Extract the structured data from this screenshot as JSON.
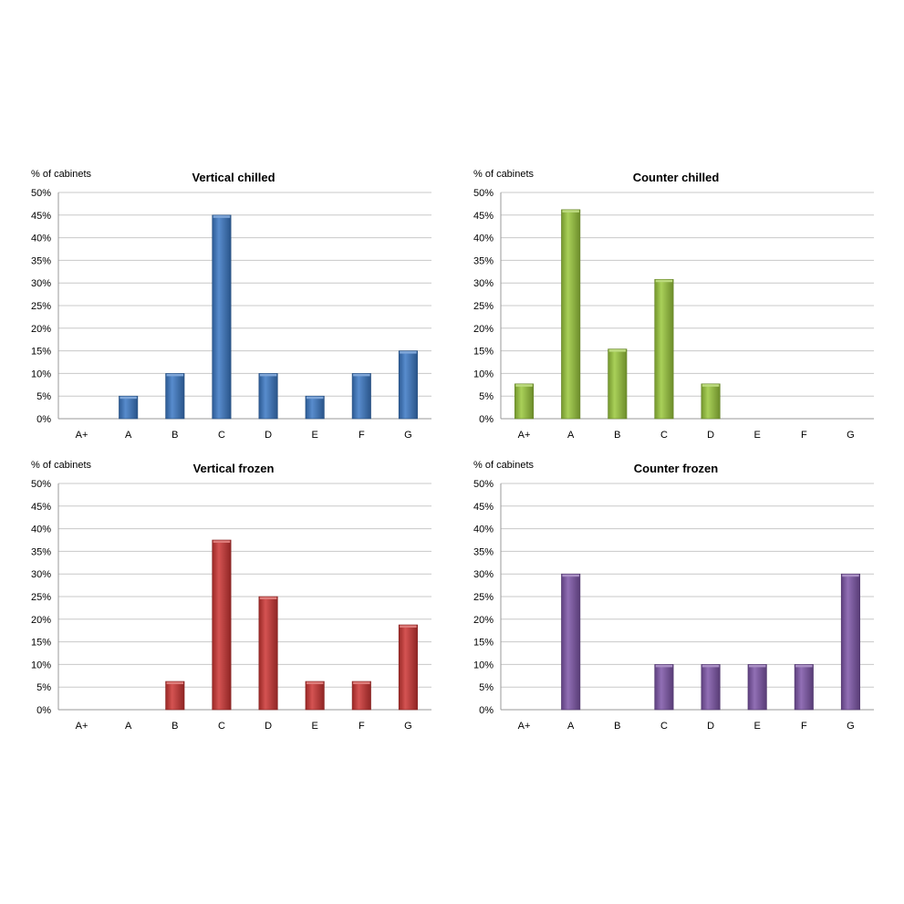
{
  "chart_data": [
    {
      "type": "bar",
      "title": "Vertical chilled",
      "ylabel": "% of cabinets",
      "xlabel": "",
      "categories": [
        "A+",
        "A",
        "B",
        "C",
        "D",
        "E",
        "F",
        "G"
      ],
      "values": [
        0,
        5,
        10,
        45,
        10,
        5,
        10,
        15
      ],
      "ylim": [
        0,
        50
      ],
      "yticks": [
        "0%",
        "5%",
        "10%",
        "15%",
        "20%",
        "25%",
        "30%",
        "35%",
        "40%",
        "45%",
        "50%"
      ],
      "color": "#3b78c4",
      "grid": true
    },
    {
      "type": "bar",
      "title": "Counter chilled",
      "ylabel": "% of cabinets",
      "xlabel": "",
      "categories": [
        "A+",
        "A",
        "B",
        "C",
        "D",
        "E",
        "F",
        "G"
      ],
      "values": [
        7.7,
        46.2,
        15.4,
        30.8,
        7.7,
        0,
        0,
        0
      ],
      "ylim": [
        0,
        50
      ],
      "yticks": [
        "0%",
        "5%",
        "10%",
        "15%",
        "20%",
        "25%",
        "30%",
        "35%",
        "40%",
        "45%",
        "50%"
      ],
      "color": "#9ac83c",
      "grid": true
    },
    {
      "type": "bar",
      "title": "Vertical frozen",
      "ylabel": "% of cabinets",
      "xlabel": "",
      "categories": [
        "A+",
        "A",
        "B",
        "C",
        "D",
        "E",
        "F",
        "G"
      ],
      "values": [
        0,
        0,
        6.25,
        37.5,
        25,
        6.25,
        6.25,
        18.75
      ],
      "ylim": [
        0,
        50
      ],
      "yticks": [
        "0%",
        "5%",
        "10%",
        "15%",
        "20%",
        "25%",
        "30%",
        "35%",
        "40%",
        "45%",
        "50%"
      ],
      "color": "#cc3533",
      "grid": true
    },
    {
      "type": "bar",
      "title": "Counter frozen",
      "ylabel": "% of cabinets",
      "xlabel": "",
      "categories": [
        "A+",
        "A",
        "B",
        "C",
        "D",
        "E",
        "F",
        "G"
      ],
      "values": [
        0,
        30,
        0,
        10,
        10,
        10,
        10,
        30
      ],
      "ylim": [
        0,
        50
      ],
      "yticks": [
        "0%",
        "5%",
        "10%",
        "15%",
        "20%",
        "25%",
        "30%",
        "35%",
        "40%",
        "45%",
        "50%"
      ],
      "color": "#7d55a8",
      "grid": true
    }
  ]
}
